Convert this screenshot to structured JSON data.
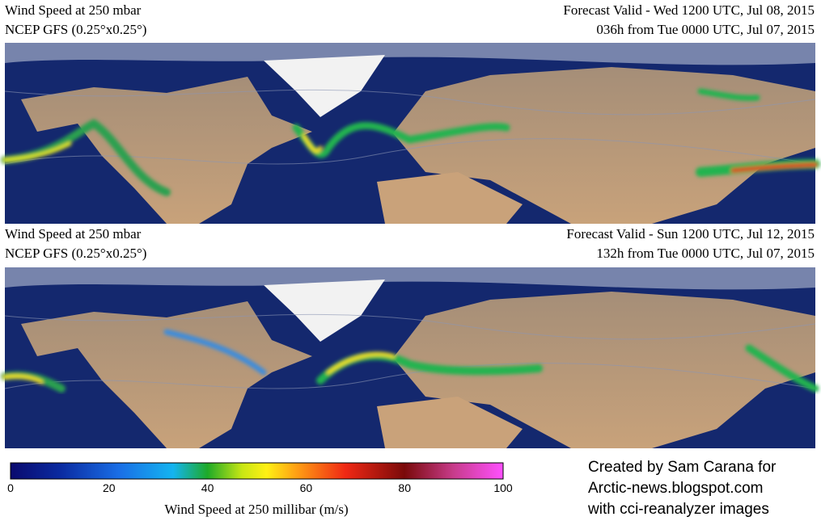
{
  "panels": [
    {
      "title": "Wind Speed at 250 mbar",
      "model": "NCEP GFS (0.25°x0.25°)",
      "valid": "Forecast Valid - Wed 1200 UTC, Jul 08, 2015",
      "run": "036h from Tue 0000 UTC, Jul 07, 2015"
    },
    {
      "title": "Wind Speed at 250 mbar",
      "model": "NCEP GFS (0.25°x0.25°)",
      "valid": "Forecast Valid - Sun 1200 UTC, Jul 12, 2015",
      "run": "132h from Tue 0000 UTC, Jul 07, 2015"
    }
  ],
  "colorbar": {
    "ticks": [
      0,
      20,
      40,
      60,
      80,
      100
    ],
    "label": "Wind Speed at 250 millibar (m/s)"
  },
  "credit": [
    "Created by Sam Carana for",
    "Arctic-news.blogspot.com",
    "with cci-reanalyzer images"
  ]
}
